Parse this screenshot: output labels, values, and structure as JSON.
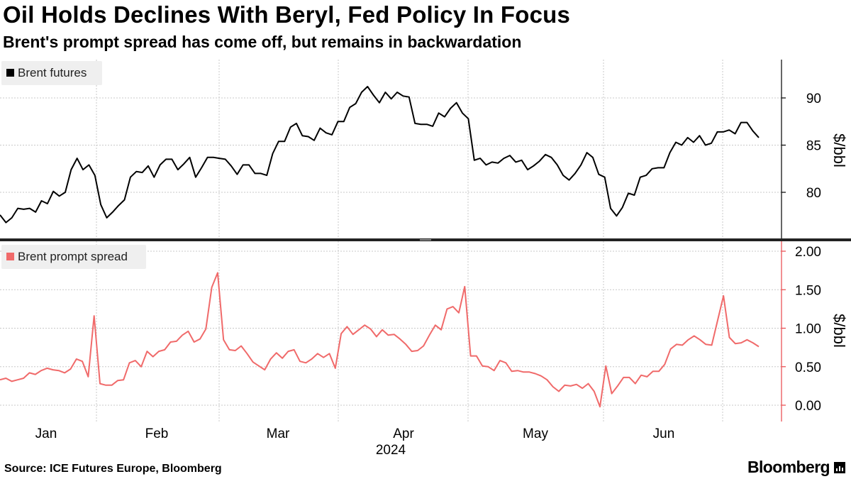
{
  "header": {
    "title": "Oil Holds Declines With Beryl, Fed Policy In Focus",
    "subtitle": "Brent's prompt spread has come off, but remains in backwardation"
  },
  "footer": {
    "source": "Source: ICE Futures Europe, Bloomberg",
    "brand": "Bloomberg"
  },
  "colors": {
    "brent_line": "#000000",
    "spread_line": "#f06a6a",
    "grid": "#c8c8c8",
    "legend_bg": "#efefef"
  },
  "chart_data": [
    {
      "type": "line",
      "title": "Brent futures",
      "legend": "Brent futures",
      "ylabel": "$/bbl",
      "ylim": [
        75.5,
        94
      ],
      "yticks": [
        80,
        85,
        90
      ],
      "ytick_labels": [
        "80",
        "85",
        "90"
      ],
      "series": [
        {
          "name": "Brent futures",
          "values": [
            77.6,
            76.8,
            77.3,
            78.3,
            78.2,
            78.3,
            77.9,
            79.1,
            78.8,
            80.1,
            79.6,
            80.0,
            82.4,
            83.6,
            82.4,
            82.9,
            81.8,
            78.7,
            77.3,
            77.9,
            78.6,
            79.2,
            81.6,
            82.2,
            82.1,
            82.8,
            81.6,
            82.9,
            83.5,
            83.5,
            82.4,
            83.0,
            83.7,
            81.6,
            82.6,
            83.7,
            83.7,
            83.6,
            83.5,
            82.8,
            81.9,
            82.9,
            82.9,
            82.0,
            82.0,
            81.8,
            84.1,
            85.4,
            85.4,
            86.9,
            87.3,
            86.0,
            85.9,
            85.5,
            86.8,
            86.3,
            86.1,
            87.5,
            87.5,
            89.0,
            89.4,
            90.6,
            91.2,
            90.3,
            89.5,
            90.6,
            89.9,
            90.6,
            90.2,
            90.1,
            87.3,
            87.2,
            87.2,
            87.0,
            88.4,
            88.0,
            88.9,
            89.5,
            88.4,
            87.8,
            83.4,
            83.6,
            82.9,
            83.2,
            83.1,
            83.6,
            83.9,
            83.2,
            83.4,
            82.4,
            82.8,
            83.3,
            84.0,
            83.7,
            82.9,
            81.8,
            81.3,
            82.0,
            82.9,
            84.2,
            83.7,
            81.9,
            81.6,
            78.3,
            77.5,
            78.4,
            79.9,
            79.7,
            81.6,
            81.8,
            82.5,
            82.6,
            82.6,
            84.2,
            85.3,
            85.0,
            85.8,
            85.3,
            86.0,
            85.0,
            85.2,
            86.4,
            86.4,
            86.6,
            86.2,
            87.4,
            87.4,
            86.5,
            85.8
          ]
        }
      ]
    },
    {
      "type": "line",
      "title": "Brent prompt spread",
      "legend": "Brent prompt spread",
      "ylabel": "$/bbl",
      "ylim": [
        -0.25,
        2.05
      ],
      "yticks": [
        0,
        0.5,
        1,
        1.5,
        2
      ],
      "ytick_labels": [
        "0.00",
        "0.50",
        "1.00",
        "1.50",
        "2.00"
      ],
      "series": [
        {
          "name": "Brent prompt spread",
          "values": [
            0.33,
            0.35,
            0.31,
            0.33,
            0.35,
            0.42,
            0.4,
            0.45,
            0.48,
            0.46,
            0.45,
            0.42,
            0.47,
            0.6,
            0.57,
            0.37,
            1.16,
            0.28,
            0.26,
            0.26,
            0.32,
            0.33,
            0.55,
            0.58,
            0.5,
            0.7,
            0.63,
            0.7,
            0.72,
            0.82,
            0.83,
            0.91,
            0.96,
            0.82,
            0.86,
            0.99,
            1.53,
            1.72,
            0.85,
            0.72,
            0.71,
            0.77,
            0.67,
            0.56,
            0.51,
            0.46,
            0.6,
            0.68,
            0.61,
            0.7,
            0.72,
            0.57,
            0.55,
            0.6,
            0.67,
            0.62,
            0.67,
            0.48,
            0.93,
            1.02,
            0.92,
            0.98,
            1.04,
            0.99,
            0.89,
            0.98,
            0.91,
            0.92,
            0.86,
            0.79,
            0.7,
            0.71,
            0.77,
            0.91,
            1.04,
            0.98,
            1.25,
            1.28,
            1.2,
            1.54,
            0.64,
            0.64,
            0.51,
            0.5,
            0.45,
            0.58,
            0.55,
            0.44,
            0.45,
            0.43,
            0.43,
            0.41,
            0.38,
            0.33,
            0.24,
            0.18,
            0.26,
            0.25,
            0.27,
            0.22,
            0.28,
            0.18,
            -0.02,
            0.51,
            0.15,
            0.25,
            0.36,
            0.36,
            0.28,
            0.39,
            0.37,
            0.44,
            0.44,
            0.53,
            0.73,
            0.79,
            0.78,
            0.85,
            0.9,
            0.85,
            0.79,
            0.78,
            1.1,
            1.42,
            0.88,
            0.8,
            0.81,
            0.85,
            0.81,
            0.76
          ]
        }
      ]
    }
  ],
  "x_axis": {
    "months": [
      "Jan",
      "Feb",
      "Mar",
      "Apr",
      "May",
      "Jun"
    ],
    "year": "2024"
  }
}
